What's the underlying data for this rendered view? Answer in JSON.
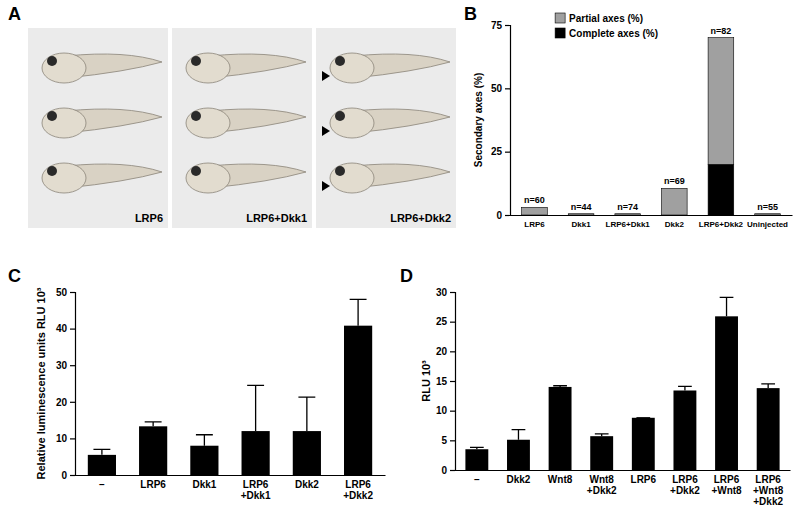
{
  "photo_panel": {
    "label": "A",
    "captions": [
      "LRP6",
      "LRP6+Dkk1",
      "LRP6+Dkk2"
    ]
  },
  "chart_data": [
    {
      "type": "bar",
      "title": "B",
      "stacked": true,
      "categories": [
        "LRP6",
        "Dkk1",
        "LRP6+Dkk1",
        "Dkk2",
        "LRP6+Dkk2",
        "Uninjected"
      ],
      "series": [
        {
          "name": "Complete axes (%)",
          "color": "#000000",
          "values": [
            0,
            0,
            0,
            0,
            20,
            0
          ]
        },
        {
          "name": "Partial axes (%)",
          "color": "#a0a0a0",
          "values": [
            3,
            0.5,
            0.5,
            10.5,
            50,
            0.5
          ]
        }
      ],
      "annotations": [
        "n=60",
        "n=44",
        "n=74",
        "n=69",
        "n=82",
        "n=55"
      ],
      "y_label": "Secondary axes (%)",
      "ylim": [
        0,
        75
      ],
      "yticks": [
        0,
        25,
        50,
        75
      ],
      "legend": "upper left"
    },
    {
      "type": "bar",
      "title": "C",
      "color": "#000000",
      "categories": [
        "–",
        "LRP6",
        "Dkk1",
        "LRP6\n+Dkk1",
        "Dkk2",
        "LRP6\n+Dkk2"
      ],
      "values": [
        5.5,
        13.3,
        8,
        12,
        12,
        40.8
      ],
      "errors": [
        1.5,
        1.2,
        3,
        12.5,
        9.3,
        7.2
      ],
      "y_label": "Relative luminescence units RLU 10³",
      "ylim": [
        0,
        50
      ],
      "yticks": [
        0,
        10,
        20,
        30,
        40,
        50
      ]
    },
    {
      "type": "bar",
      "title": "D",
      "color": "#000000",
      "categories": [
        "–",
        "Dkk2",
        "Wnt8",
        "Wnt8\n+Dkk2",
        "LRP6",
        "LRP6\n+Dkk2",
        "LRP6\n+Wnt8",
        "LRP6\n+Wnt8\n+Dkk2"
      ],
      "values": [
        3.5,
        5.1,
        14,
        5.7,
        8.8,
        13.4,
        25.9,
        13.8
      ],
      "errors": [
        0.3,
        1.7,
        0.2,
        0.4,
        0,
        0.7,
        3.2,
        0.7
      ],
      "y_label": "RLU 10³",
      "ylim": [
        0,
        30
      ],
      "yticks": [
        0,
        5,
        10,
        15,
        20,
        25,
        30
      ]
    }
  ]
}
